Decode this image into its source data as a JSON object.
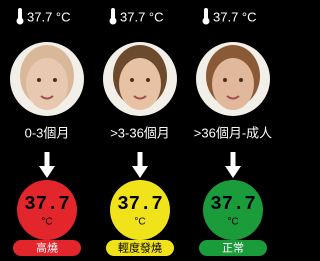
{
  "columns": [
    {
      "temperature": "37.7 °C",
      "age": "0-3個月",
      "display": "37.7",
      "display_unit": "°C",
      "status": "高燒",
      "color": "#e3262c",
      "status_text_color": "#ffffff"
    },
    {
      "temperature": "37.7 °C",
      "age": ">3-36個月",
      "display": "37.7",
      "display_unit": "°C",
      "status": "輕度發燒",
      "color": "#f1e31a",
      "status_text_color": "#000000"
    },
    {
      "temperature": "37.7 °C",
      "age": ">36個月-成人",
      "display": "37.7",
      "display_unit": "°C",
      "status": "正常",
      "color": "#1b9c3a",
      "status_text_color": "#ffffff"
    }
  ]
}
